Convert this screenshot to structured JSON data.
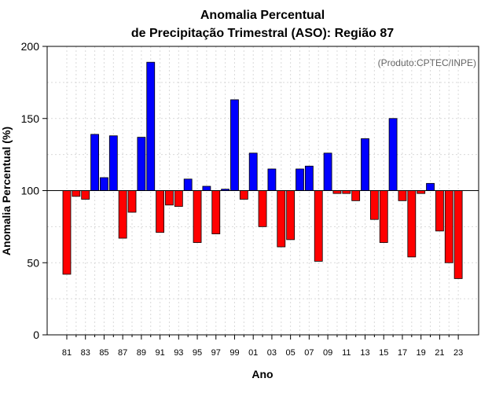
{
  "chart_data": {
    "type": "bar",
    "title_line1": "Anomalia Percentual",
    "title_line2": "de Precipitação Trimestral (ASO): Região 87",
    "xlabel": "Ano",
    "ylabel": "Anomalia Percentual (%)",
    "annotation": "(Produto:CPTEC/INPE)",
    "ylim": [
      0,
      200
    ],
    "yticks": [
      "0",
      "50",
      "100",
      "150",
      "200"
    ],
    "baseline": 100,
    "grid": true,
    "colors": {
      "above": "#0000ff",
      "below": "#ff0000",
      "edge": "#000000",
      "grid": "#d9d9d9"
    },
    "categories": [
      "81",
      "82",
      "83",
      "84",
      "85",
      "86",
      "87",
      "88",
      "89",
      "90",
      "91",
      "92",
      "93",
      "94",
      "95",
      "96",
      "97",
      "98",
      "99",
      "00",
      "01",
      "02",
      "03",
      "04",
      "05",
      "06",
      "07",
      "08",
      "09",
      "10",
      "11",
      "12",
      "13",
      "14",
      "15",
      "16",
      "17",
      "18",
      "19",
      "20",
      "21",
      "22",
      "23"
    ],
    "xtick_labels": [
      "81",
      "83",
      "85",
      "87",
      "89",
      "91",
      "93",
      "95",
      "97",
      "99",
      "01",
      "03",
      "05",
      "07",
      "09",
      "11",
      "13",
      "15",
      "17",
      "19",
      "21",
      "23"
    ],
    "values": [
      42,
      96,
      94,
      139,
      109,
      138,
      67,
      85,
      137,
      189,
      71,
      90,
      89,
      108,
      64,
      103,
      70,
      101,
      163,
      94,
      126,
      75,
      115,
      61,
      66,
      115,
      117,
      51,
      126,
      98,
      98,
      93,
      136,
      80,
      64,
      150,
      93,
      54,
      98,
      105,
      72,
      50,
      39
    ]
  }
}
